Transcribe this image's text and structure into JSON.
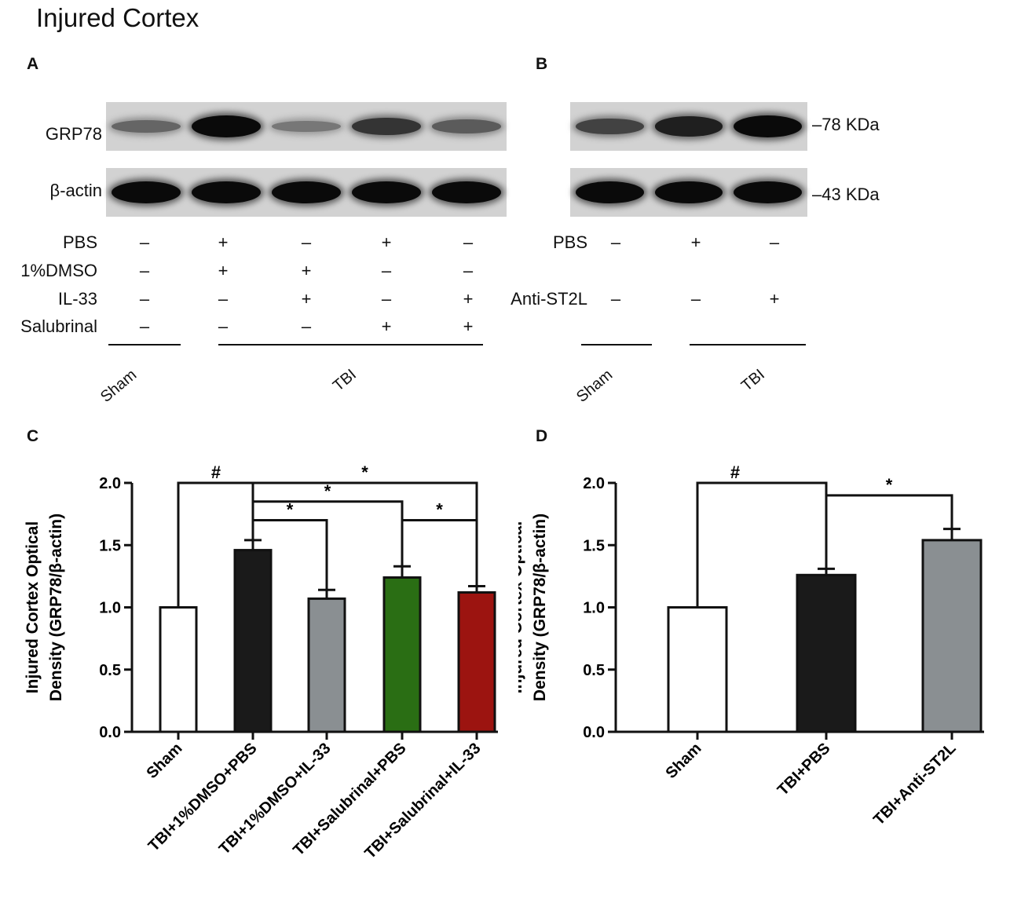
{
  "figure_title": "Injured Cortex",
  "panels": {
    "a": {
      "label": "A",
      "rows": [
        {
          "name": "GRP78",
          "intensity": [
            0.35,
            1.0,
            0.22,
            0.7,
            0.42
          ]
        },
        {
          "name": "β-actin",
          "intensity": [
            1.0,
            1.0,
            1.0,
            1.0,
            1.0
          ]
        }
      ],
      "treatments": [
        {
          "name": "PBS",
          "signs": [
            "–",
            "+",
            "–",
            "+",
            "–"
          ]
        },
        {
          "name": "1%DMSO",
          "signs": [
            "–",
            "+",
            "+",
            "–",
            "–"
          ]
        },
        {
          "name": "IL-33",
          "signs": [
            "–",
            "–",
            "+",
            "–",
            "+"
          ]
        },
        {
          "name": "Salubrinal",
          "signs": [
            "–",
            "–",
            "–",
            "+",
            "+"
          ]
        }
      ],
      "groups": [
        "Sham",
        "TBI"
      ]
    },
    "b": {
      "label": "B",
      "rows": [
        {
          "name": "78 KDa",
          "intensity": [
            0.6,
            0.85,
            1.0
          ]
        },
        {
          "name": "43 KDa",
          "intensity": [
            1.0,
            1.0,
            1.0
          ]
        }
      ],
      "markers": [
        "–78 KDa",
        "–43 KDa"
      ],
      "treatments": [
        {
          "name": "PBS",
          "signs": [
            "–",
            "+",
            "–"
          ]
        },
        {
          "name": "Anti-ST2L",
          "signs": [
            "–",
            "–",
            "+"
          ]
        }
      ],
      "groups": [
        "Sham",
        "TBI"
      ]
    }
  },
  "chart_data": [
    {
      "panel": "C",
      "type": "bar",
      "categories": [
        "Sham",
        "TBI+1%DMSO+PBS",
        "TBI+1%DMSO+IL-33",
        "TBI+Salubrinal+PBS",
        "TBI+Salubrinal+IL-33"
      ],
      "values": [
        1.0,
        1.46,
        1.07,
        1.24,
        1.12
      ],
      "errors": [
        0.0,
        0.08,
        0.07,
        0.09,
        0.05
      ],
      "colors": [
        "#ffffff",
        "#1a1a1a",
        "#8a8f92",
        "#2a6e14",
        "#9c1410"
      ],
      "ylabel_line1": "Injured Cortex Optical",
      "ylabel_line2": "Density (GRP78/β-actin)",
      "ylim": [
        0,
        2.0
      ],
      "yticks": [
        "0.0",
        "0.5",
        "1.0",
        "1.5",
        "2.0"
      ],
      "significance": [
        {
          "from": 0,
          "to": 1,
          "symbol": "#",
          "level": 2.0
        },
        {
          "from": 1,
          "to": 4,
          "symbol": "*",
          "level": 2.0
        },
        {
          "from": 1,
          "to": 3,
          "symbol": "*",
          "level": 1.85
        },
        {
          "from": 1,
          "to": 2,
          "symbol": "*",
          "level": 1.7
        },
        {
          "from": 3,
          "to": 4,
          "symbol": "*",
          "level": 1.7
        }
      ]
    },
    {
      "panel": "D",
      "type": "bar",
      "categories": [
        "Sham",
        "TBI+PBS",
        "TBI+Anti-ST2L"
      ],
      "values": [
        1.0,
        1.26,
        1.54
      ],
      "errors": [
        0.0,
        0.05,
        0.09
      ],
      "colors": [
        "#ffffff",
        "#1a1a1a",
        "#8a8f92"
      ],
      "ylabel_line1": "Injured Cortex Optical",
      "ylabel_line2": "Density (GRP78/β-actin)",
      "ylim": [
        0,
        2.0
      ],
      "yticks": [
        "0.0",
        "0.5",
        "1.0",
        "1.5",
        "2.0"
      ],
      "significance": [
        {
          "from": 0,
          "to": 1,
          "symbol": "#",
          "level": 2.0
        },
        {
          "from": 1,
          "to": 2,
          "symbol": "*",
          "level": 1.9
        }
      ]
    }
  ]
}
